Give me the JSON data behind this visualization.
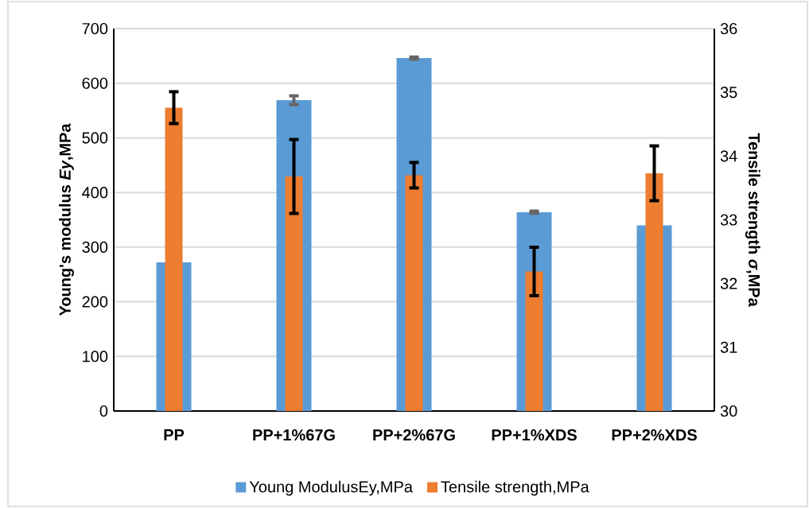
{
  "chart_data": {
    "type": "bar",
    "categories": [
      "PP",
      "PP+1%67G",
      "PP+2%67G",
      "PP+1%XDS",
      "PP+2%XDS"
    ],
    "ylabel": "Young's modulus *Ey*,MPa",
    "y2label": "Tensile strength *σ*,MPa",
    "ylim": [
      0,
      700
    ],
    "yticks": [
      0,
      100,
      200,
      300,
      400,
      500,
      600,
      700
    ],
    "y2lim": [
      30,
      36
    ],
    "y2ticks": [
      30,
      31,
      32,
      33,
      34,
      35,
      36
    ],
    "grid": "y",
    "legend": "bottom",
    "series": [
      {
        "name": "Young ModulusEy,MPa",
        "color": "#5b9bd5",
        "values": [
          272,
          569,
          646,
          364,
          340
        ],
        "errors": [
          null,
          8,
          2,
          2,
          null
        ]
      },
      {
        "name": "Tensile strength,MPa",
        "color": "#ed7d31",
        "axis": "y2",
        "values": [
          34.76,
          33.68,
          33.7,
          32.19,
          33.73
        ],
        "errors": [
          0.25,
          0.58,
          0.2,
          0.38,
          0.43
        ]
      }
    ]
  }
}
